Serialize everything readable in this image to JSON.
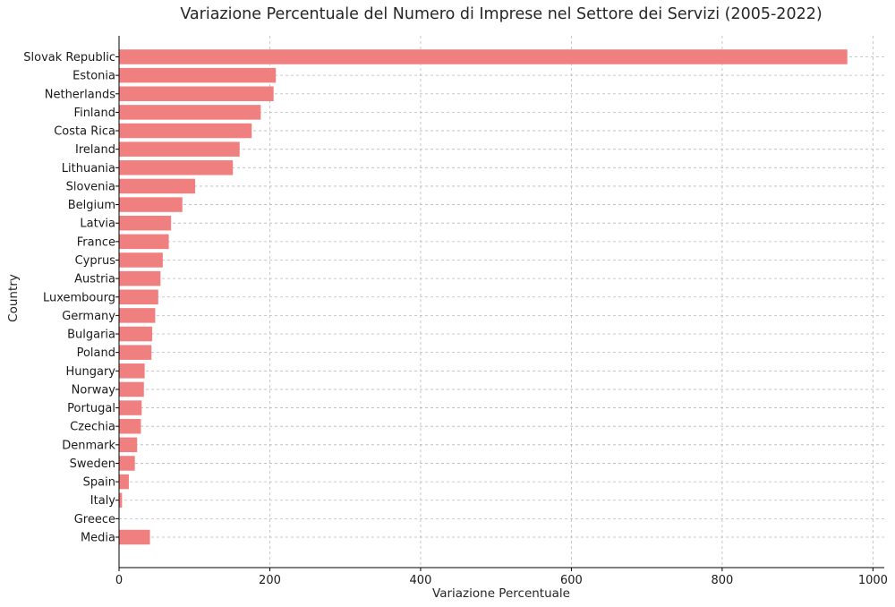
{
  "chart_data": {
    "type": "bar",
    "orientation": "horizontal",
    "title": "Variazione Percentuale del Numero di Imprese nel Settore dei Servizi (2005-2022)",
    "xlabel": "Variazione Percentuale",
    "ylabel": "Country",
    "xlim": [
      0,
      1015
    ],
    "x_ticks": [
      0,
      200,
      400,
      600,
      800,
      1000
    ],
    "x_tick_labels": [
      "0",
      "200",
      "400",
      "600",
      "800",
      "1000"
    ],
    "grid": true,
    "bar_color": "#f08080",
    "categories": [
      "Slovak Republic",
      "Estonia",
      "Netherlands",
      "Finland",
      "Costa Rica",
      "Ireland",
      "Lithuania",
      "Slovenia",
      "Belgium",
      "Latvia",
      "France",
      "Cyprus",
      "Austria",
      "Luxembourg",
      "Germany",
      "Bulgaria",
      "Poland",
      "Hungary",
      "Norway",
      "Portugal",
      "Czechia",
      "Denmark",
      "Sweden",
      "Spain",
      "Italy",
      "Greece",
      "Media"
    ],
    "values": [
      966,
      208,
      205,
      188,
      176,
      160,
      151,
      101,
      84,
      69,
      66,
      58,
      55,
      52,
      48,
      44,
      43,
      34,
      33,
      30,
      29,
      24,
      21,
      13,
      4,
      0,
      41
    ]
  }
}
